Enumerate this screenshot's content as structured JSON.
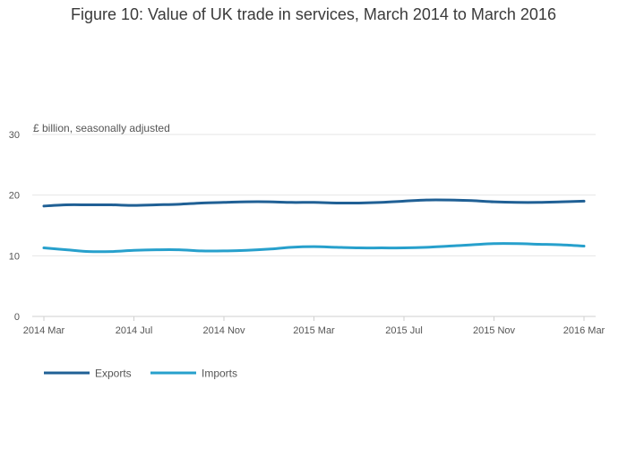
{
  "chart_data": {
    "type": "line",
    "title": "Figure 10: Value of UK trade in services, March 2014 to March 2016",
    "ylabel": "£ billion, seasonally adjusted",
    "xlabel": "",
    "ylim": [
      0,
      30
    ],
    "yticks": [
      0,
      10,
      20,
      30
    ],
    "grid": true,
    "legend_position": "bottom-left",
    "x": [
      "2014 Mar",
      "2014 Apr",
      "2014 May",
      "2014 Jun",
      "2014 Jul",
      "2014 Aug",
      "2014 Sep",
      "2014 Oct",
      "2014 Nov",
      "2014 Dec",
      "2015 Jan",
      "2015 Feb",
      "2015 Mar",
      "2015 Apr",
      "2015 May",
      "2015 Jun",
      "2015 Jul",
      "2015 Aug",
      "2015 Sep",
      "2015 Oct",
      "2015 Nov",
      "2015 Dec",
      "2016 Jan",
      "2016 Feb",
      "2016 Mar"
    ],
    "xtick_labels": [
      "2014 Mar",
      "2014 Jul",
      "2014 Nov",
      "2015 Mar",
      "2015 Jul",
      "2015 Nov",
      "2016 Mar"
    ],
    "xtick_indices": [
      0,
      4,
      8,
      12,
      16,
      20,
      24
    ],
    "series": [
      {
        "name": "Exports",
        "color": "#206095",
        "values": [
          18.2,
          18.4,
          18.4,
          18.4,
          18.3,
          18.4,
          18.5,
          18.7,
          18.8,
          18.9,
          18.9,
          18.8,
          18.8,
          18.7,
          18.7,
          18.8,
          19.0,
          19.2,
          19.2,
          19.1,
          18.9,
          18.8,
          18.8,
          18.9,
          19.0
        ]
      },
      {
        "name": "Imports",
        "color": "#27a0cc",
        "values": [
          11.3,
          11.0,
          10.7,
          10.7,
          10.9,
          11.0,
          11.0,
          10.8,
          10.8,
          10.9,
          11.1,
          11.4,
          11.5,
          11.4,
          11.3,
          11.3,
          11.3,
          11.4,
          11.6,
          11.8,
          12.0,
          12.0,
          11.9,
          11.8,
          11.6
        ]
      }
    ]
  }
}
